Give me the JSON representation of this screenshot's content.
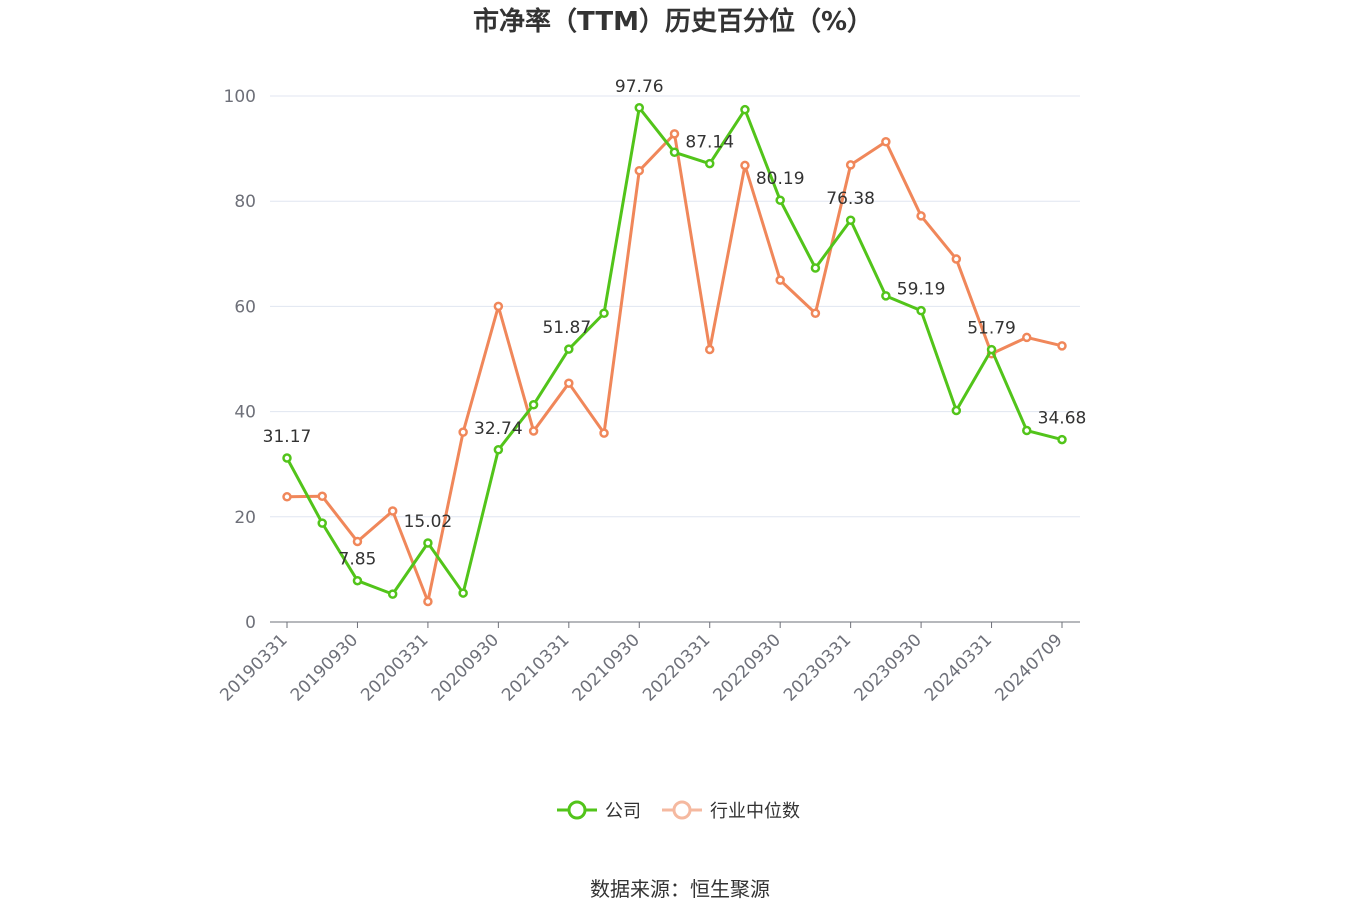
{
  "chart_data": {
    "type": "line",
    "title": "市净率（TTM）历史百分位（%）",
    "xlabel": "",
    "ylabel": "",
    "ylim": [
      0,
      100
    ],
    "yticks": [
      0,
      20,
      40,
      60,
      80,
      100
    ],
    "grid": true,
    "legend_position": "bottom",
    "x": [
      "20190331",
      "20190630",
      "20190930",
      "20191231",
      "20200331",
      "20200630",
      "20200930",
      "20201231",
      "20210331",
      "20210630",
      "20210930",
      "20211231",
      "20220331",
      "20220630",
      "20220930",
      "20221231",
      "20230331",
      "20230630",
      "20230930",
      "20231231",
      "20240331",
      "20240630",
      "20240709"
    ],
    "x_tick_labels": [
      "20190331",
      "20190930",
      "20200331",
      "20200930",
      "20210331",
      "20210930",
      "20220331",
      "20220930",
      "20230331",
      "20230930",
      "20240331",
      "20240709"
    ],
    "series": [
      {
        "name": "公司",
        "color": "#52c41a",
        "values": [
          31.17,
          18.8,
          7.85,
          5.3,
          15.02,
          5.5,
          32.74,
          41.3,
          51.87,
          58.7,
          97.76,
          89.3,
          87.14,
          97.4,
          80.19,
          67.3,
          76.38,
          62.0,
          59.19,
          40.2,
          51.79,
          36.4,
          34.68
        ]
      },
      {
        "name": "行业中位数",
        "color": "#f0875a",
        "values": [
          23.8,
          23.9,
          15.3,
          21.1,
          3.9,
          36.1,
          60.0,
          36.3,
          45.4,
          35.9,
          85.8,
          92.8,
          51.8,
          86.8,
          65.0,
          58.7,
          86.9,
          91.3,
          77.2,
          69.0,
          51.0,
          54.1,
          52.5
        ]
      }
    ],
    "annotations": [
      {
        "series": 0,
        "index": 0,
        "text": "31.17"
      },
      {
        "series": 0,
        "index": 2,
        "text": "7.85"
      },
      {
        "series": 0,
        "index": 4,
        "text": "15.02"
      },
      {
        "series": 0,
        "index": 6,
        "text": "32.74"
      },
      {
        "series": 0,
        "index": 8,
        "text": "51.87"
      },
      {
        "series": 0,
        "index": 10,
        "text": "97.76"
      },
      {
        "series": 0,
        "index": 12,
        "text": "87.14"
      },
      {
        "series": 0,
        "index": 14,
        "text": "80.19"
      },
      {
        "series": 0,
        "index": 16,
        "text": "76.38"
      },
      {
        "series": 0,
        "index": 18,
        "text": "59.19"
      },
      {
        "series": 0,
        "index": 20,
        "text": "51.79"
      },
      {
        "series": 0,
        "index": 22,
        "text": "34.68"
      }
    ]
  },
  "legend": [
    {
      "label": "公司",
      "color": "#52c41a"
    },
    {
      "label": "行业中位数",
      "color": "#f0875a"
    }
  ],
  "source": "数据来源：恒生聚源"
}
